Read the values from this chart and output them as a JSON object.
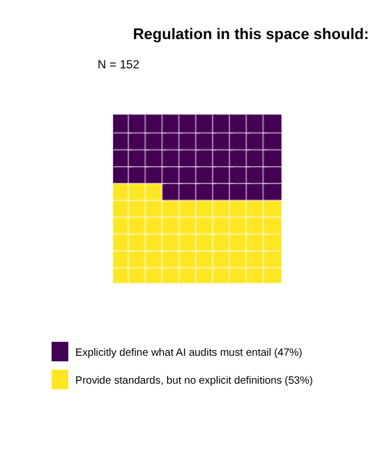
{
  "chart_data": {
    "type": "other",
    "title": "Regulation in this space should:",
    "subtitle": "N = 152",
    "categories": [
      "Explicitly define what AI audits must entail",
      "Provide standards, but no explicit definitions"
    ],
    "values": [
      47,
      53
    ],
    "value_labels": [
      "(47%)",
      "(53%)"
    ],
    "colors": [
      "#440154",
      "#fde725"
    ]
  }
}
